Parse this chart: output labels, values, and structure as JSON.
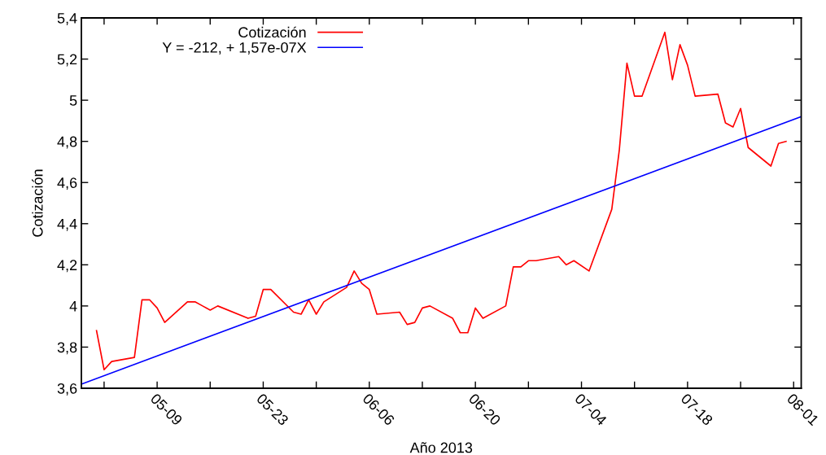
{
  "chart_data": {
    "type": "line",
    "xlabel": "Año 2013",
    "ylabel": "Cotización",
    "xlim": [
      "2013-04-29",
      "2013-08-02"
    ],
    "xticks": [
      {
        "value": "2013-05-02",
        "label": null
      },
      {
        "value": "2013-05-09",
        "label": "05-09"
      },
      {
        "value": "2013-05-16",
        "label": null
      },
      {
        "value": "2013-05-23",
        "label": "05-23"
      },
      {
        "value": "2013-05-30",
        "label": null
      },
      {
        "value": "2013-06-06",
        "label": "06-06"
      },
      {
        "value": "2013-06-13",
        "label": null
      },
      {
        "value": "2013-06-20",
        "label": "06-20"
      },
      {
        "value": "2013-06-27",
        "label": null
      },
      {
        "value": "2013-07-04",
        "label": "07-04"
      },
      {
        "value": "2013-07-11",
        "label": null
      },
      {
        "value": "2013-07-18",
        "label": "07-18"
      },
      {
        "value": "2013-07-25",
        "label": null
      },
      {
        "value": "2013-08-01",
        "label": "08-01"
      }
    ],
    "ylim": [
      3.6,
      5.4
    ],
    "yticks": [
      {
        "value": 3.6,
        "label": "3,6"
      },
      {
        "value": 3.8,
        "label": "3,8"
      },
      {
        "value": 4.0,
        "label": "4"
      },
      {
        "value": 4.2,
        "label": "4,2"
      },
      {
        "value": 4.4,
        "label": "4,4"
      },
      {
        "value": 4.6,
        "label": "4,6"
      },
      {
        "value": 4.8,
        "label": "4,8"
      },
      {
        "value": 5.0,
        "label": "5"
      },
      {
        "value": 5.2,
        "label": "5,2"
      },
      {
        "value": 5.4,
        "label": "5,4"
      }
    ],
    "grid": false,
    "legend": "top left",
    "marker": "none",
    "line_style": "solid",
    "series": [
      {
        "name": "Cotización",
        "color": "#ff0000",
        "x": [
          "2013-05-01",
          "2013-05-02",
          "2013-05-03",
          "2013-05-06",
          "2013-05-07",
          "2013-05-08",
          "2013-05-09",
          "2013-05-10",
          "2013-05-13",
          "2013-05-14",
          "2013-05-15",
          "2013-05-16",
          "2013-05-17",
          "2013-05-21",
          "2013-05-22",
          "2013-05-23",
          "2013-05-24",
          "2013-05-27",
          "2013-05-28",
          "2013-05-29",
          "2013-05-30",
          "2013-05-31",
          "2013-06-03",
          "2013-06-04",
          "2013-06-05",
          "2013-06-06",
          "2013-06-07",
          "2013-06-10",
          "2013-06-11",
          "2013-06-12",
          "2013-06-13",
          "2013-06-14",
          "2013-06-17",
          "2013-06-18",
          "2013-06-19",
          "2013-06-20",
          "2013-06-21",
          "2013-06-24",
          "2013-06-25",
          "2013-06-26",
          "2013-06-27",
          "2013-06-28",
          "2013-07-01",
          "2013-07-02",
          "2013-07-03",
          "2013-07-05",
          "2013-07-08",
          "2013-07-09",
          "2013-07-10",
          "2013-07-11",
          "2013-07-12",
          "2013-07-15",
          "2013-07-16",
          "2013-07-17",
          "2013-07-18",
          "2013-07-19",
          "2013-07-22",
          "2013-07-23",
          "2013-07-24",
          "2013-07-25",
          "2013-07-26",
          "2013-07-29",
          "2013-07-30",
          "2013-07-31"
        ],
        "values": [
          3.88,
          3.69,
          3.73,
          3.75,
          4.03,
          4.03,
          3.99,
          3.92,
          4.02,
          4.02,
          4.0,
          3.98,
          4.0,
          3.94,
          3.95,
          4.08,
          4.08,
          3.97,
          3.96,
          4.03,
          3.96,
          4.02,
          4.09,
          4.17,
          4.11,
          4.08,
          3.96,
          3.97,
          3.91,
          3.92,
          3.99,
          4.0,
          3.94,
          3.87,
          3.87,
          3.99,
          3.94,
          4.0,
          4.19,
          4.19,
          4.22,
          4.22,
          4.24,
          4.2,
          4.22,
          4.17,
          4.47,
          4.76,
          5.18,
          5.02,
          5.02,
          5.33,
          5.1,
          5.27,
          5.17,
          5.02,
          5.03,
          4.89,
          4.87,
          4.96,
          4.77,
          4.68,
          4.79,
          4.8
        ]
      },
      {
        "name": "Y = -212, + 1,57e-07X",
        "color": "#0000ff",
        "x": [
          "2013-04-29",
          "2013-08-02"
        ],
        "values": [
          3.62,
          4.92
        ]
      }
    ]
  }
}
